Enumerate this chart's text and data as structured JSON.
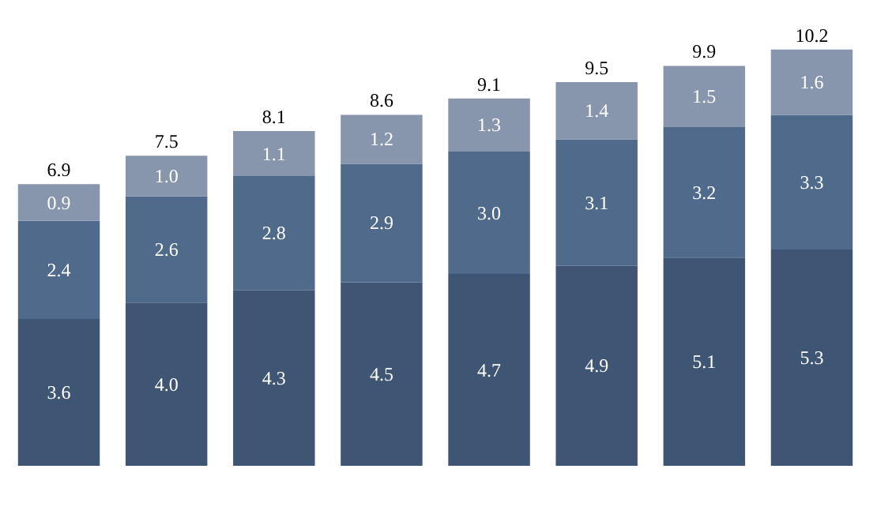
{
  "chart_data": {
    "type": "bar",
    "stacked": true,
    "grid": false,
    "categories": [
      null,
      null,
      null,
      null,
      null,
      null,
      null,
      null
    ],
    "series": [
      {
        "color": "#3e5573",
        "values": [
          3.6,
          4.0,
          4.3,
          4.5,
          4.7,
          4.9,
          5.1,
          5.3
        ],
        "value_labels": [
          "3.6",
          "4.0",
          "4.3",
          "4.5",
          "4.7",
          "4.9",
          "5.1",
          "5.3"
        ]
      },
      {
        "color": "#506a8b",
        "values": [
          2.4,
          2.6,
          2.8,
          2.9,
          3.0,
          3.1,
          3.2,
          3.3
        ],
        "value_labels": [
          "2.4",
          "2.6",
          "2.8",
          "2.9",
          "3.0",
          "3.1",
          "3.2",
          "3.3"
        ]
      },
      {
        "color": "#8796ad",
        "values": [
          0.9,
          1.0,
          1.1,
          1.2,
          1.3,
          1.4,
          1.5,
          1.6
        ],
        "value_labels": [
          "0.9",
          "1.0",
          "1.1",
          "1.2",
          "1.3",
          "1.4",
          "1.5",
          "1.6"
        ]
      }
    ],
    "totals": [
      "6.9",
      "7.5",
      "8.1",
      "8.6",
      "9.1",
      "9.5",
      "9.9",
      "10.2"
    ]
  }
}
